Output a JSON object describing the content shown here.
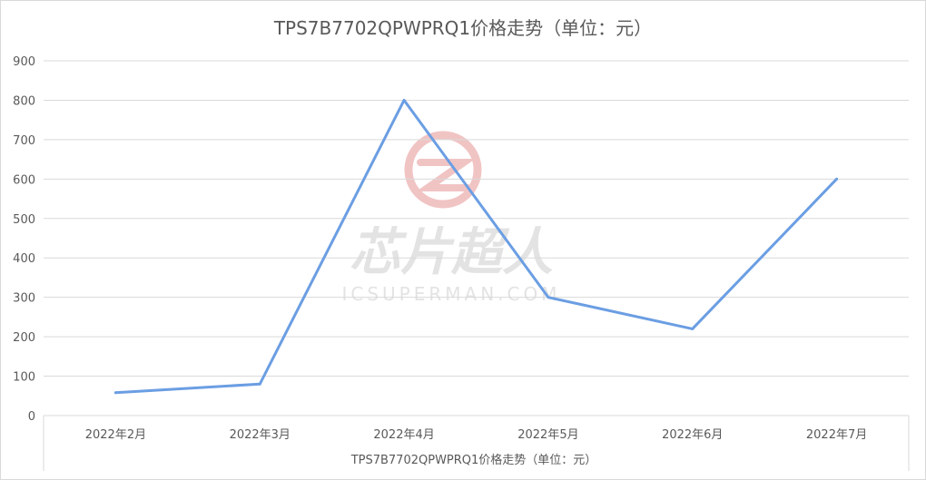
{
  "chart_data": {
    "type": "line",
    "title": "TPS7B7702QPWPRQ1价格走势（单位：元）",
    "xlabel": "TPS7B7702QPWPRQ1价格走势（单位：元）",
    "ylabel": "",
    "categories": [
      "2022年2月",
      "2022年3月",
      "2022年4月",
      "2022年5月",
      "2022年6月",
      "2022年7月"
    ],
    "series": [
      {
        "values": [
          58,
          80,
          800,
          300,
          220,
          600
        ]
      }
    ],
    "ylim": [
      0,
      900
    ],
    "yticks": [
      0,
      100,
      200,
      300,
      400,
      500,
      600,
      700,
      800,
      900
    ],
    "grid": true,
    "legend": "none"
  },
  "colors": {
    "series": "#6b9ee3",
    "watermark": "#f1c4c4",
    "watermark_text": "#e3e3e3"
  },
  "watermark": {
    "brand": "芯片超人",
    "site": "ICSUPERMAN.COM"
  }
}
